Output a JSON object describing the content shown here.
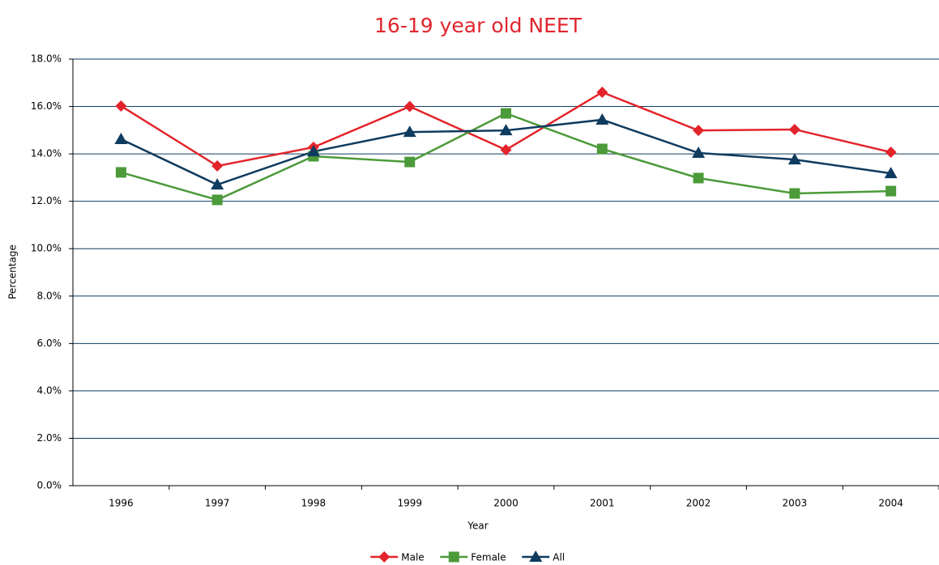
{
  "chart_data": {
    "type": "line",
    "title": "16-19 year old NEET",
    "x_label": "Year",
    "y_label": "Percentage",
    "categories": [
      "1996",
      "1997",
      "1998",
      "1999",
      "2000",
      "2001",
      "2002",
      "2003",
      "2004"
    ],
    "series": [
      {
        "name": "Male",
        "color": "#e3242b",
        "marker": "diamond",
        "values": [
          16.02,
          13.49,
          14.28,
          16.0,
          14.17,
          16.6,
          14.99,
          15.03,
          14.07
        ]
      },
      {
        "name": "Female",
        "color": "#4c9a3a",
        "marker": "square",
        "values": [
          13.22,
          12.06,
          13.9,
          13.66,
          15.71,
          14.21,
          12.98,
          12.33,
          12.43
        ]
      },
      {
        "name": "All",
        "color": "#0f3b5f",
        "marker": "triangle",
        "values": [
          14.62,
          12.7,
          14.1,
          14.92,
          14.99,
          15.44,
          14.04,
          13.76,
          13.18
        ]
      }
    ],
    "ylim": [
      0,
      18
    ],
    "yticks": [
      {
        "value": 0,
        "label": "0.0%"
      },
      {
        "value": 2,
        "label": "2.0%"
      },
      {
        "value": 4,
        "label": "4.0%"
      },
      {
        "value": 6,
        "label": "6.0%"
      },
      {
        "value": 8,
        "label": "8.0%"
      },
      {
        "value": 10,
        "label": "10.0%"
      },
      {
        "value": 12,
        "label": "12.0%"
      },
      {
        "value": 14,
        "label": "14.0%"
      },
      {
        "value": 16,
        "label": "16.0%"
      },
      {
        "value": 18,
        "label": "18.0%"
      }
    ],
    "grid": true,
    "legend": "bottom"
  }
}
